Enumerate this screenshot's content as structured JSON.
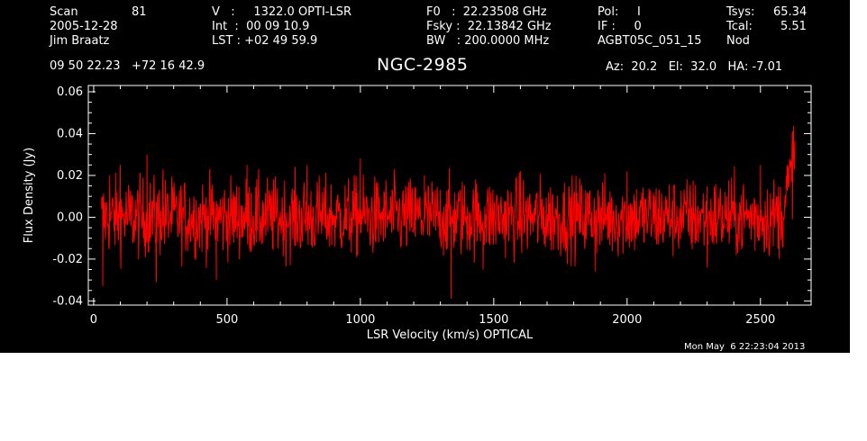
{
  "header": {
    "col1": {
      "row1_label": "Scan",
      "row1_value": "81",
      "row2": "2005-12-28",
      "row3": "Jim Braatz"
    },
    "col2": {
      "row1": "V   :     1322.0 OPTI-LSR",
      "row2": "Int  :  00 09 10.9",
      "row3": "LST : +02 49 59.9"
    },
    "col3": {
      "row1": "F0   :  22.23508 GHz",
      "row2": "Fsky :  22.13842 GHz",
      "row3": "BW   : 200.0000 MHz"
    },
    "col4": {
      "row1": "Pol:     I",
      "row2": "IF :     0",
      "row3": "AGBT05C_051_15"
    },
    "col5": {
      "row1_label": "Tsys:",
      "row1_value": "65.34",
      "row2_label": "Tcal:",
      "row2_value": "5.51",
      "row3": "Nod"
    },
    "coords": "09 50 22.23   +72 16 42.9",
    "source": "NGC-2985",
    "azelha": "Az:  20.2   El:  32.0   HA: -7.01"
  },
  "timestamp": "Mon May  6 22:23:04 2013",
  "colors": {
    "background": "#000000",
    "foreground": "#ffffff",
    "series": "#ff0000"
  },
  "chart_data": {
    "type": "line",
    "title": "NGC-2985",
    "xlabel": "LSR Velocity (km/s) OPTICAL",
    "ylabel": "Flux Density (Jy)",
    "xlim": [
      -20,
      2690
    ],
    "ylim": [
      -0.042,
      0.063
    ],
    "xticks": [
      0,
      500,
      1000,
      1500,
      2000,
      2500
    ],
    "xtick_labels": [
      "0",
      "500",
      "1000",
      "1500",
      "2000",
      "2500"
    ],
    "yticks": [
      -0.04,
      -0.02,
      0.0,
      0.02,
      0.04,
      0.06
    ],
    "ytick_labels": [
      "-0.04",
      "-0.02",
      "0.00",
      "0.02",
      "0.04",
      "0.06"
    ],
    "grid": false,
    "series": [
      {
        "x_start": 30,
        "x_end": 2630,
        "noise_rms": 0.0095,
        "edge_rise": {
          "start": 2560,
          "peak": 0.032
        },
        "samples": [
          [
            30,
            0.004
          ],
          [
            34,
            -0.033
          ],
          [
            60,
            0.02
          ],
          [
            100,
            0.025
          ],
          [
            200,
            0.03
          ],
          [
            235,
            -0.031
          ],
          [
            260,
            0.023
          ],
          [
            460,
            -0.03
          ],
          [
            575,
            0.025
          ],
          [
            800,
            0.025
          ],
          [
            1000,
            0.028
          ],
          [
            1240,
            0.02
          ],
          [
            1340,
            -0.039
          ],
          [
            1460,
            -0.025
          ],
          [
            1600,
            0.022
          ],
          [
            1880,
            -0.026
          ],
          [
            2000,
            0.022
          ],
          [
            2300,
            -0.024
          ],
          [
            2500,
            0.025
          ],
          [
            2560,
            0.01
          ],
          [
            2600,
            0.025
          ],
          [
            2620,
            0.041
          ]
        ]
      }
    ]
  }
}
